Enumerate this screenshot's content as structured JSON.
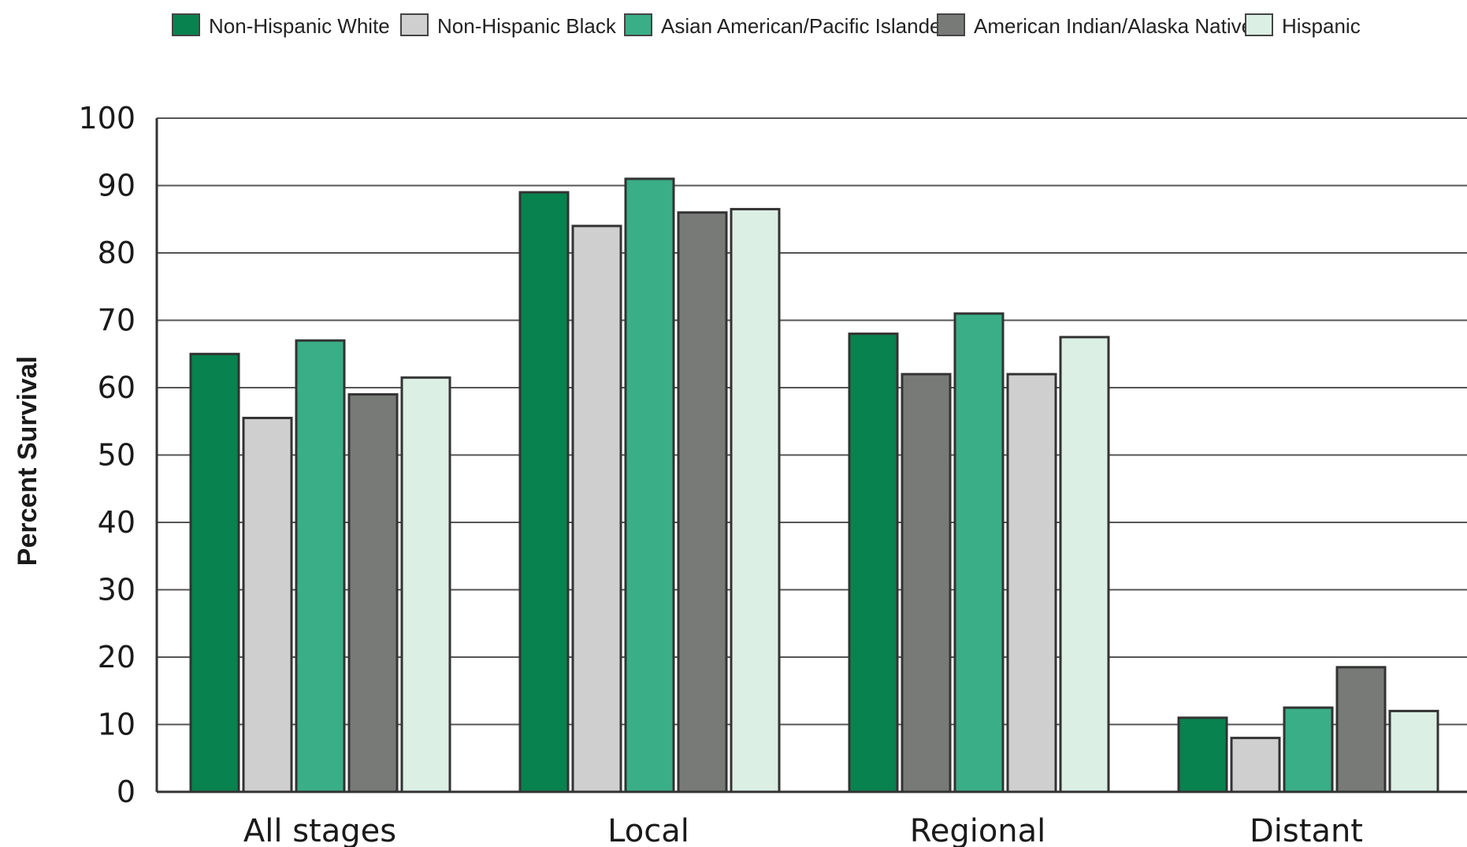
{
  "chart_data": {
    "type": "bar",
    "title": "",
    "xlabel": "",
    "ylabel": "Percent Survival",
    "ylim": [
      0,
      100
    ],
    "yticks": [
      0,
      10,
      20,
      30,
      40,
      50,
      60,
      70,
      80,
      90,
      100
    ],
    "grid": true,
    "legend_position": "top",
    "categories": [
      "All stages",
      "Local",
      "Regional",
      "Distant"
    ],
    "series": [
      {
        "name": "Non-Hispanic White",
        "color": "#08824f",
        "values": [
          65,
          89,
          68,
          11
        ]
      },
      {
        "name": "Non-Hispanic Black",
        "color": "#cfcfcf",
        "values": [
          55.5,
          84,
          62,
          8
        ]
      },
      {
        "name": "Asian American/Pacific Islander",
        "color": "#3aae86",
        "values": [
          67,
          91,
          71,
          12.5
        ]
      },
      {
        "name": "American Indian/Alaska Native",
        "color": "#787a78",
        "values": [
          59,
          86,
          62,
          18.5
        ]
      },
      {
        "name": "Hispanic",
        "color": "#dcefe4",
        "values": [
          61.5,
          86.5,
          67.5,
          12
        ]
      }
    ],
    "bar_colors_by_category": [
      [
        "#08824f",
        "#cfcfcf",
        "#3aae86",
        "#787a78",
        "#dcefe4"
      ],
      [
        "#08824f",
        "#cfcfcf",
        "#3aae86",
        "#787a78",
        "#dcefe4"
      ],
      [
        "#08824f",
        "#787a78",
        "#3aae86",
        "#cfcfcf",
        "#dcefe4"
      ],
      [
        "#08824f",
        "#cfcfcf",
        "#3aae86",
        "#787a78",
        "#dcefe4"
      ]
    ]
  }
}
